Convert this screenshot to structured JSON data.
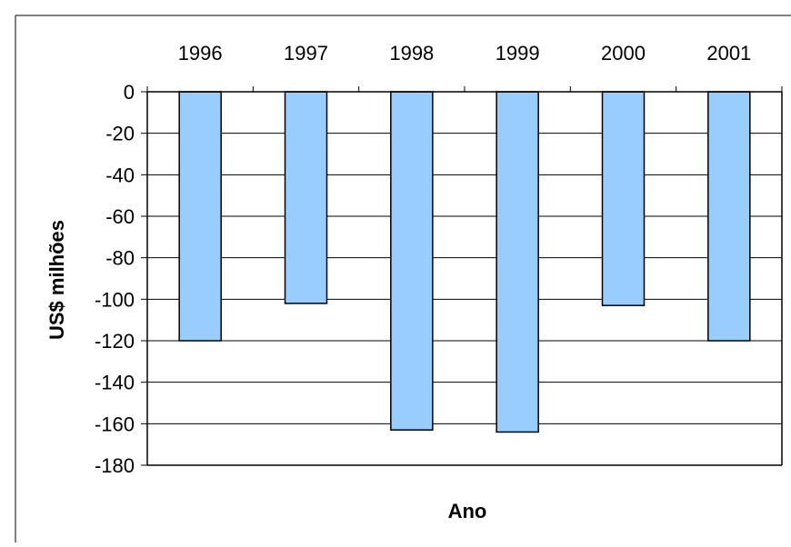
{
  "chart_data": {
    "type": "bar",
    "categories": [
      "1996",
      "1997",
      "1998",
      "1999",
      "2000",
      "2001"
    ],
    "values": [
      -120,
      -102,
      -163,
      -164,
      -103,
      -120
    ],
    "xlabel": "Ano",
    "ylabel": "US$ milhões",
    "ylim": [
      -180,
      0
    ],
    "yticks": [
      0,
      -20,
      -40,
      -60,
      -80,
      -100,
      -120,
      -140,
      -160,
      -180
    ],
    "grid": true,
    "category_axis_position": "top",
    "legend": "none",
    "colors": {
      "bar_fill": "#99ccff",
      "bar_stroke": "#000000",
      "gridline": "#000000",
      "background": "#ffffff"
    }
  }
}
